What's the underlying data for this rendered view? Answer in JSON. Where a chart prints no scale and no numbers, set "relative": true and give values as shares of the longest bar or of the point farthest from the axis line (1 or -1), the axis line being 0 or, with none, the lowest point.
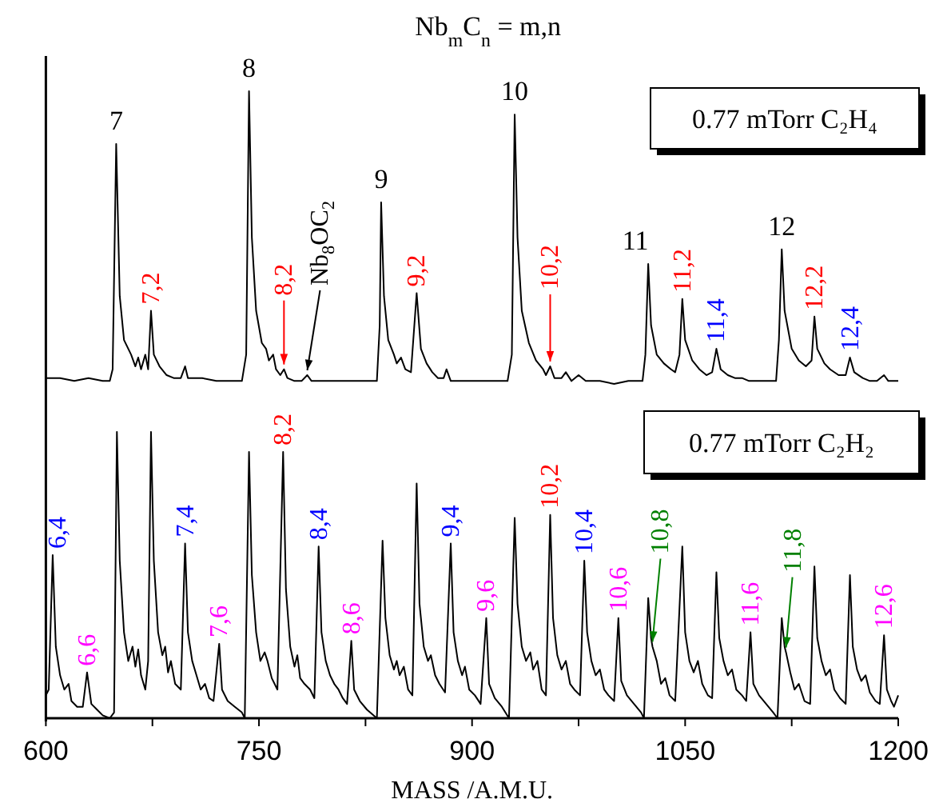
{
  "chart_data": [
    {
      "type": "line",
      "title": "Nb$_{m}$C$_{n}$ = m,n",
      "relative": true,
      "xlim": [
        600,
        1200
      ],
      "tick_labels": false,
      "legend": "top right",
      "x": [
        600,
        610,
        620,
        630,
        640,
        645,
        647,
        649.5,
        652,
        655,
        660,
        663,
        665,
        667,
        670,
        672,
        674,
        676,
        680,
        685,
        690,
        695,
        698,
        700,
        710,
        720,
        730,
        738,
        741,
        743,
        745,
        748,
        752,
        755,
        757,
        760,
        762,
        765,
        767.6,
        770,
        775,
        780,
        784,
        787,
        795,
        805,
        815,
        825,
        833,
        835,
        836,
        838,
        841,
        845,
        847,
        850,
        853,
        857,
        861,
        864,
        868,
        872,
        876,
        880,
        882,
        885,
        895,
        905,
        915,
        925,
        928,
        930,
        932,
        935,
        940,
        945,
        950,
        952,
        955,
        958,
        963,
        966,
        970,
        975,
        980,
        990,
        1000,
        1010,
        1020,
        1022,
        1024,
        1026,
        1030,
        1035,
        1040,
        1043,
        1046,
        1048,
        1050,
        1055,
        1060,
        1065,
        1069,
        1072,
        1075,
        1080,
        1085,
        1090,
        1095,
        1105,
        1114,
        1116,
        1118,
        1120,
        1125,
        1130,
        1135,
        1139,
        1141,
        1143,
        1148,
        1152,
        1158,
        1163,
        1166,
        1169,
        1175,
        1180,
        1185,
        1190,
        1193,
        1200
      ],
      "series": [
        {
          "name": "0.77 mTorr C₂H₄",
          "color": "#000000",
          "values": [
            0.02,
            0.02,
            0.01,
            0.02,
            0.01,
            0.01,
            0.05,
            0.82,
            0.3,
            0.15,
            0.1,
            0.06,
            0.09,
            0.05,
            0.1,
            0.05,
            0.25,
            0.1,
            0.06,
            0.03,
            0.02,
            0.02,
            0.06,
            0.02,
            0.02,
            0.01,
            0.01,
            0.01,
            0.1,
            1,
            0.5,
            0.25,
            0.14,
            0.12,
            0.08,
            0.1,
            0.05,
            0.03,
            0.05,
            0.02,
            0.01,
            0.01,
            0.03,
            0.01,
            0.01,
            0.01,
            0.01,
            0.01,
            0.01,
            0.2,
            0.62,
            0.3,
            0.15,
            0.1,
            0.07,
            0.09,
            0.05,
            0.04,
            0.31,
            0.12,
            0.07,
            0.04,
            0.02,
            0.02,
            0.05,
            0.01,
            0.01,
            0.01,
            0.01,
            0.01,
            0.1,
            0.92,
            0.5,
            0.25,
            0.14,
            0.08,
            0.05,
            0.03,
            0.06,
            0.02,
            0.02,
            0.04,
            0.01,
            0.03,
            0.01,
            0.01,
            0,
            0.01,
            0.01,
            0.1,
            0.41,
            0.2,
            0.1,
            0.07,
            0.05,
            0.04,
            0.1,
            0.29,
            0.15,
            0.08,
            0.05,
            0.03,
            0.04,
            0.12,
            0.05,
            0.03,
            0.02,
            0.02,
            0.01,
            0.01,
            0.01,
            0.15,
            0.46,
            0.25,
            0.12,
            0.08,
            0.06,
            0.08,
            0.23,
            0.12,
            0.07,
            0.05,
            0.03,
            0.03,
            0.09,
            0.04,
            0.02,
            0.01,
            0.01,
            0.03,
            0.01,
            0.01
          ]
        }
      ],
      "annotations": [
        {
          "text": "7",
          "x": 649.5,
          "y": 0.82
        },
        {
          "text": "7,2",
          "x": 674,
          "y": 0.25
        },
        {
          "text": "8",
          "x": 743,
          "y": 1
        },
        {
          "text": "8,2",
          "x": 767.6,
          "y": 0.05
        },
        {
          "text": "Nb$_{8}$OC$_{2}$",
          "x": 784,
          "y": 0.03
        },
        {
          "text": "9",
          "x": 836,
          "y": 0.62
        },
        {
          "text": "9,2",
          "x": 861,
          "y": 0.31
        },
        {
          "text": "10",
          "x": 930,
          "y": 0.92
        },
        {
          "text": "10,2",
          "x": 955,
          "y": 0.06
        },
        {
          "text": "11",
          "x": 1024,
          "y": 0.41
        },
        {
          "text": "11,2",
          "x": 1048,
          "y": 0.29
        },
        {
          "text": "11,4",
          "x": 1072,
          "y": 0.12
        },
        {
          "text": "12",
          "x": 1118,
          "y": 0.46
        },
        {
          "text": "12,2",
          "x": 1141,
          "y": 0.23
        },
        {
          "text": "12,4",
          "x": 1166,
          "y": 0.09
        }
      ]
    },
    {
      "type": "line",
      "relative": true,
      "xlim": [
        600,
        1200
      ],
      "xlabel": "MASS /A.M.U.",
      "legend": "top right",
      "xticks": [
        600,
        {
          "value": 675,
          "label": null
        },
        750,
        {
          "value": 825,
          "label": null
        },
        900,
        {
          "value": 975,
          "label": null
        },
        1050,
        {
          "value": 1125,
          "label": null
        },
        1200
      ],
      "x": [
        600,
        602,
        604.8,
        607,
        610,
        613,
        616,
        618,
        622,
        626,
        629,
        632,
        636,
        640,
        645,
        648,
        650,
        652,
        655,
        658,
        661,
        663,
        665,
        667,
        670,
        672,
        674,
        676,
        679,
        682,
        684,
        686,
        688,
        691,
        695,
        698,
        700,
        703,
        706,
        709,
        712,
        715,
        718,
        722,
        724,
        728,
        733,
        738,
        740,
        743,
        745,
        748,
        751,
        754,
        756,
        759,
        763,
        767,
        769,
        772,
        775,
        777,
        779,
        782,
        786,
        789,
        792,
        794,
        797,
        800,
        803,
        806,
        809,
        812,
        815,
        817,
        821,
        826,
        833,
        837,
        839,
        842,
        845,
        847,
        849,
        852,
        855,
        858,
        861,
        863,
        866,
        869,
        871,
        874,
        877,
        881,
        885,
        887,
        890,
        893,
        895,
        898,
        902,
        906,
        910,
        912,
        916,
        921,
        926,
        930,
        932,
        935,
        938,
        941,
        943,
        946,
        949,
        952,
        955,
        957,
        960,
        963,
        966,
        969,
        972,
        976,
        979,
        981,
        984,
        987,
        990,
        993,
        996,
        1000,
        1003,
        1005,
        1009,
        1014,
        1019,
        1021,
        1024,
        1026,
        1027,
        1030,
        1033,
        1036,
        1039,
        1043,
        1048,
        1050,
        1053,
        1056,
        1059,
        1062,
        1066,
        1069,
        1072,
        1074,
        1077,
        1080,
        1083,
        1086,
        1090,
        1093,
        1096,
        1098,
        1102,
        1107,
        1112,
        1115,
        1118,
        1120,
        1121,
        1124,
        1127,
        1130,
        1134,
        1138,
        1141,
        1143,
        1146,
        1149,
        1152,
        1155,
        1159,
        1163,
        1166,
        1168,
        1171,
        1174,
        1177,
        1180,
        1184,
        1187,
        1190,
        1192,
        1195,
        1197,
        1200
      ],
      "series": [
        {
          "name": "0.77 mTorr C₂H₂",
          "color": "#000000",
          "values": [
            0.08,
            0.1,
            0.57,
            0.25,
            0.15,
            0.1,
            0.12,
            0.06,
            0.04,
            0.04,
            0.16,
            0.05,
            0.03,
            0.01,
            0,
            0.02,
            1,
            0.55,
            0.3,
            0.2,
            0.25,
            0.18,
            0.24,
            0.15,
            0.1,
            0.2,
            1,
            0.55,
            0.3,
            0.22,
            0.25,
            0.16,
            0.2,
            0.12,
            0.1,
            0.61,
            0.3,
            0.2,
            0.15,
            0.1,
            0.12,
            0.07,
            0.06,
            0.26,
            0.1,
            0.06,
            0.04,
            0.02,
            0,
            0.93,
            0.5,
            0.3,
            0.2,
            0.23,
            0.2,
            0.14,
            0.1,
            0.93,
            0.45,
            0.25,
            0.18,
            0.22,
            0.14,
            0.12,
            0.1,
            0.07,
            0.6,
            0.3,
            0.2,
            0.15,
            0.12,
            0.1,
            0.07,
            0.05,
            0.27,
            0.1,
            0.06,
            0.03,
            0,
            0.62,
            0.35,
            0.22,
            0.17,
            0.2,
            0.15,
            0.18,
            0.1,
            0.08,
            0.82,
            0.4,
            0.25,
            0.2,
            0.22,
            0.15,
            0.12,
            0.09,
            0.61,
            0.3,
            0.2,
            0.15,
            0.18,
            0.1,
            0.08,
            0.05,
            0.35,
            0.12,
            0.07,
            0.04,
            0,
            0.7,
            0.4,
            0.25,
            0.2,
            0.23,
            0.17,
            0.2,
            0.1,
            0.08,
            0.71,
            0.35,
            0.22,
            0.17,
            0.2,
            0.12,
            0.1,
            0.08,
            0.55,
            0.3,
            0.2,
            0.15,
            0.17,
            0.1,
            0.08,
            0.06,
            0.35,
            0.13,
            0.08,
            0.05,
            0.02,
            0,
            0.42,
            0.28,
            0.25,
            0.2,
            0.12,
            0.14,
            0.08,
            0.06,
            0.6,
            0.3,
            0.2,
            0.16,
            0.2,
            0.12,
            0.08,
            0.07,
            0.51,
            0.28,
            0.2,
            0.15,
            0.17,
            0.1,
            0.08,
            0.06,
            0.3,
            0.12,
            0.08,
            0.05,
            0.02,
            0,
            0.35,
            0.25,
            0.23,
            0.16,
            0.1,
            0.12,
            0.06,
            0.05,
            0.53,
            0.28,
            0.2,
            0.15,
            0.17,
            0.1,
            0.07,
            0.05,
            0.5,
            0.25,
            0.17,
            0.13,
            0.15,
            0.09,
            0.06,
            0.05,
            0.29,
            0.1,
            0.06,
            0.04,
            0.08
          ]
        }
      ],
      "annotations": [
        {
          "text": "6,4",
          "x": 604.8,
          "y": 0.57
        },
        {
          "text": "6,6",
          "x": 629,
          "y": 0.16
        },
        {
          "text": "7,4",
          "x": 698,
          "y": 0.61
        },
        {
          "text": "7,6",
          "x": 722,
          "y": 0.26
        },
        {
          "text": "8,2",
          "x": 767,
          "y": 0.93
        },
        {
          "text": "8,4",
          "x": 792,
          "y": 0.6
        },
        {
          "text": "8,6",
          "x": 815,
          "y": 0.27
        },
        {
          "text": "9,4",
          "x": 885,
          "y": 0.61
        },
        {
          "text": "9,6",
          "x": 910,
          "y": 0.35
        },
        {
          "text": "10,2",
          "x": 955,
          "y": 0.71
        },
        {
          "text": "10,4",
          "x": 979,
          "y": 0.55
        },
        {
          "text": "10,6",
          "x": 1003,
          "y": 0.35
        },
        {
          "text": "10,8",
          "x": 1027,
          "y": 0.25
        },
        {
          "text": "11,6",
          "x": 1096,
          "y": 0.3
        },
        {
          "text": "11,8",
          "x": 1121,
          "y": 0.23
        },
        {
          "text": "12,6",
          "x": 1190,
          "y": 0.29
        }
      ]
    }
  ]
}
